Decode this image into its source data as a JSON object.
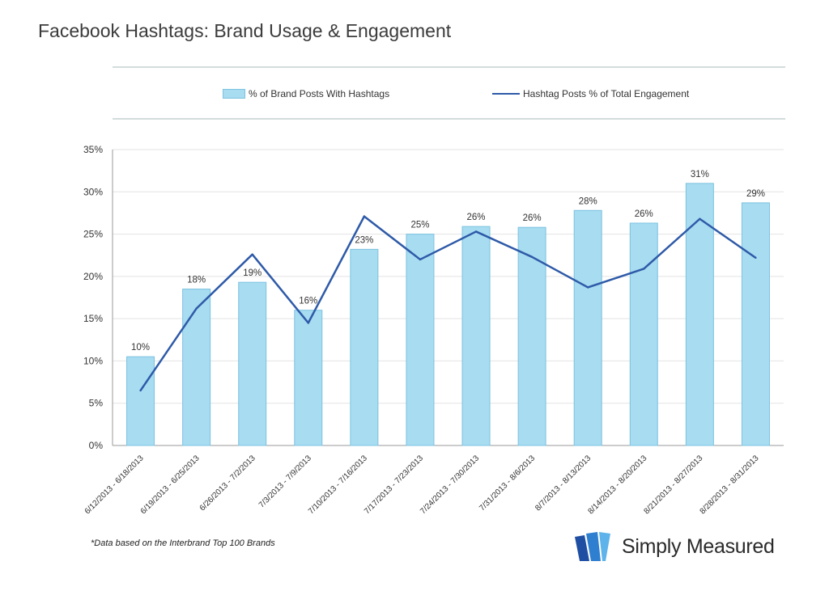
{
  "page": {
    "title": "Facebook Hashtags: Brand Usage & Engagement",
    "footnote": "*Data based on the Interbrand Top 100 Brands",
    "brand": "Simply Measured"
  },
  "colors": {
    "bar_fill": "#a7dcf1",
    "bar_stroke": "#7cc3e0",
    "line": "#2e5aa8",
    "grid": "#e3e3e3",
    "axis": "#9a9a9a",
    "text": "#333333"
  },
  "chart_data": {
    "type": "bar",
    "title": "Facebook Hashtags: Brand Usage & Engagement",
    "xlabel": "",
    "ylabel": "",
    "ylim": [
      0,
      35
    ],
    "yticks": [
      0,
      5,
      10,
      15,
      20,
      25,
      30,
      35
    ],
    "ytick_labels": [
      "0%",
      "5%",
      "10%",
      "15%",
      "20%",
      "25%",
      "30%",
      "35%"
    ],
    "grid": "horizontal",
    "legend_position": "top-center",
    "categories": [
      "6/12/2013 - 6/18/2013",
      "6/19/2013 - 6/25/2013",
      "6/26/2013 - 7/2/2013",
      "7/3/2013 - 7/9/2013",
      "7/10/2013 - 7/16/2013",
      "7/17/2013 - 7/23/2013",
      "7/24/2013 - 7/30/2013",
      "7/31/2013 - 8/6/2013",
      "8/7/2013 - 8/13/2013",
      "8/14/2013 - 8/20/2013",
      "8/21/2013 - 8/27/2013",
      "8/28/2013 - 8/31/2013"
    ],
    "series": [
      {
        "name": "% of Brand Posts With Hashtags",
        "type": "bar",
        "values": [
          10.5,
          18.5,
          19.3,
          16.0,
          23.2,
          25.0,
          25.9,
          25.8,
          27.8,
          26.3,
          31.0,
          28.7
        ],
        "labels": [
          "10%",
          "18%",
          "19%",
          "16%",
          "23%",
          "25%",
          "26%",
          "26%",
          "28%",
          "26%",
          "31%",
          "29%"
        ]
      },
      {
        "name": "Hashtag Posts % of Total Engagement",
        "type": "line",
        "values": [
          6.5,
          16.2,
          22.6,
          14.5,
          27.1,
          22.0,
          25.3,
          22.3,
          18.7,
          20.9,
          26.8,
          22.2
        ]
      }
    ]
  }
}
